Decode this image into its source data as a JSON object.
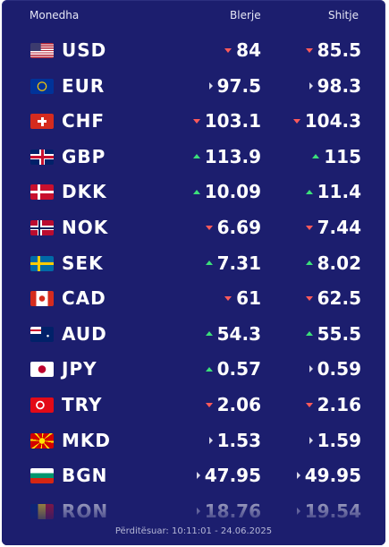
{
  "header": {
    "currency": "Monedha",
    "buy": "Blerje",
    "sell": "Shitje"
  },
  "rows": [
    {
      "code": "USD",
      "buy": 84,
      "buy_trend": "down",
      "sell": 85.5,
      "sell_trend": "down"
    },
    {
      "code": "EUR",
      "buy": 97.5,
      "buy_trend": "flat",
      "sell": 98.3,
      "sell_trend": "flat"
    },
    {
      "code": "CHF",
      "buy": 103.1,
      "buy_trend": "down",
      "sell": 104.3,
      "sell_trend": "down"
    },
    {
      "code": "GBP",
      "buy": 113.9,
      "buy_trend": "up",
      "sell": 115,
      "sell_trend": "up"
    },
    {
      "code": "DKK",
      "buy": 10.09,
      "buy_trend": "up",
      "sell": 11.4,
      "sell_trend": "up"
    },
    {
      "code": "NOK",
      "buy": 6.69,
      "buy_trend": "down",
      "sell": 7.44,
      "sell_trend": "down"
    },
    {
      "code": "SEK",
      "buy": 7.31,
      "buy_trend": "up",
      "sell": 8.02,
      "sell_trend": "up"
    },
    {
      "code": "CAD",
      "buy": 61,
      "buy_trend": "down",
      "sell": 62.5,
      "sell_trend": "down"
    },
    {
      "code": "AUD",
      "buy": 54.3,
      "buy_trend": "up",
      "sell": 55.5,
      "sell_trend": "up"
    },
    {
      "code": "JPY",
      "buy": 0.57,
      "buy_trend": "up",
      "sell": 0.59,
      "sell_trend": "flat"
    },
    {
      "code": "TRY",
      "buy": 2.06,
      "buy_trend": "down",
      "sell": 2.16,
      "sell_trend": "down"
    },
    {
      "code": "MKD",
      "buy": 1.53,
      "buy_trend": "flat",
      "sell": 1.59,
      "sell_trend": "flat"
    },
    {
      "code": "BGN",
      "buy": 47.95,
      "buy_trend": "flat",
      "sell": 49.95,
      "sell_trend": "flat"
    },
    {
      "code": "RON",
      "buy": 18.76,
      "buy_trend": "flat",
      "sell": 19.54,
      "sell_trend": "flat"
    }
  ],
  "footer": "Përditësuar: 10:11:01 - 24.06.2025"
}
